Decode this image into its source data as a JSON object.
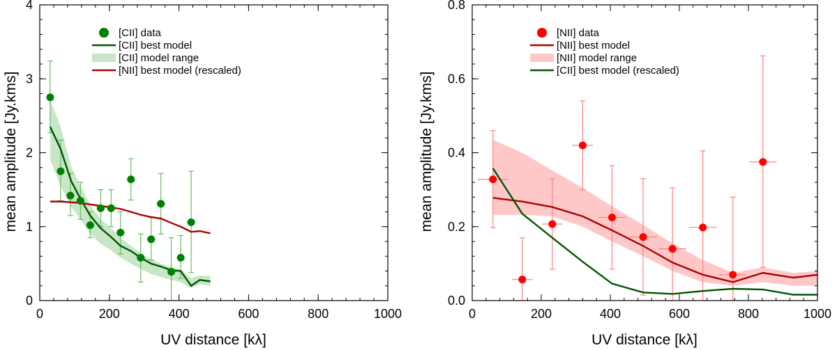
{
  "chart_data": [
    {
      "type": "scatter",
      "xlabel": "UV distance [kλ]",
      "ylabel": "mean amplitude [Jy.kms]",
      "xlim": [
        0,
        1000
      ],
      "ylim": [
        0,
        4
      ],
      "x_ticks": [
        "0",
        "200",
        "400",
        "600",
        "800",
        "1000"
      ],
      "y_ticks": [
        "0",
        "1",
        "2",
        "3",
        "4"
      ],
      "legend_position": "top-center",
      "legend": [
        {
          "label": "[CII] data",
          "kind": "dot",
          "color": "#008000"
        },
        {
          "label": "[CII] best model",
          "kind": "line",
          "color": "#005500"
        },
        {
          "label": "[CII] model range",
          "kind": "band",
          "color": "#c8e6c8"
        },
        {
          "label": "[NII] best model (rescaled)",
          "kind": "line",
          "color": "#aa0000"
        }
      ],
      "data": {
        "color": "#008000",
        "points": [
          {
            "x": 30,
            "y": 2.75,
            "ylo": 2.27,
            "yhi": 3.24,
            "xerr": 10
          },
          {
            "x": 60,
            "y": 1.75,
            "ylo": 1.35,
            "yhi": 2.17,
            "xerr": 10
          },
          {
            "x": 88,
            "y": 1.42,
            "ylo": 1.15,
            "yhi": 1.72,
            "xerr": 12
          },
          {
            "x": 117,
            "y": 1.35,
            "ylo": 1.1,
            "yhi": 1.6,
            "xerr": 12
          },
          {
            "x": 145,
            "y": 1.02,
            "ylo": 0.85,
            "yhi": 1.2,
            "xerr": 12
          },
          {
            "x": 175,
            "y": 1.25,
            "ylo": 1.0,
            "yhi": 1.5,
            "xerr": 12
          },
          {
            "x": 205,
            "y": 1.25,
            "ylo": 1.0,
            "yhi": 1.5,
            "xerr": 12
          },
          {
            "x": 232,
            "y": 0.92,
            "ylo": 0.63,
            "yhi": 1.2,
            "xerr": 12
          },
          {
            "x": 262,
            "y": 1.64,
            "ylo": 1.36,
            "yhi": 1.92,
            "xerr": 12
          },
          {
            "x": 290,
            "y": 0.58,
            "ylo": 0.25,
            "yhi": 0.9,
            "xerr": 12
          },
          {
            "x": 320,
            "y": 0.83,
            "ylo": 0.55,
            "yhi": 1.12,
            "xerr": 12
          },
          {
            "x": 348,
            "y": 1.31,
            "ylo": 0.9,
            "yhi": 1.72,
            "xerr": 12
          },
          {
            "x": 378,
            "y": 0.39,
            "ylo": 0.0,
            "yhi": 0.85,
            "xerr": 12
          },
          {
            "x": 405,
            "y": 0.58,
            "ylo": 0.3,
            "yhi": 0.88,
            "xerr": 12
          },
          {
            "x": 435,
            "y": 1.06,
            "ylo": 0.38,
            "yhi": 1.75,
            "xerr": 12
          }
        ]
      },
      "series": [
        {
          "name": "[CII] model range",
          "kind": "band",
          "color": "#c8e6c8",
          "x": [
            30,
            60,
            90,
            120,
            145,
            175,
            205,
            232,
            262,
            290,
            320,
            348,
            378,
            405,
            435,
            460,
            490
          ],
          "lower": [
            1.9,
            1.55,
            1.27,
            1.08,
            0.9,
            0.77,
            0.68,
            0.58,
            0.5,
            0.43,
            0.36,
            0.32,
            0.28,
            0.25,
            0.17,
            0.22,
            0.2
          ],
          "upper": [
            2.72,
            2.35,
            1.82,
            1.52,
            1.3,
            1.1,
            0.98,
            0.85,
            0.74,
            0.64,
            0.56,
            0.5,
            0.45,
            0.42,
            0.3,
            0.34,
            0.33
          ]
        },
        {
          "name": "[CII] best model",
          "kind": "line",
          "color": "#005500",
          "x": [
            30,
            60,
            90,
            120,
            145,
            175,
            205,
            232,
            262,
            290,
            320,
            348,
            378,
            405,
            435,
            460,
            490
          ],
          "y": [
            2.35,
            2.05,
            1.62,
            1.35,
            1.15,
            0.98,
            0.86,
            0.74,
            0.67,
            0.58,
            0.5,
            0.46,
            0.41,
            0.4,
            0.2,
            0.28,
            0.26
          ]
        },
        {
          "name": "[NII] best model (rescaled)",
          "kind": "line",
          "color": "#aa0000",
          "x": [
            30,
            60,
            90,
            120,
            145,
            175,
            205,
            232,
            262,
            290,
            320,
            348,
            378,
            405,
            435,
            460,
            490
          ],
          "y": [
            1.34,
            1.34,
            1.33,
            1.32,
            1.3,
            1.28,
            1.26,
            1.24,
            1.2,
            1.16,
            1.13,
            1.11,
            1.05,
            1.0,
            0.93,
            0.94,
            0.91
          ]
        }
      ]
    },
    {
      "type": "scatter",
      "xlabel": "UV distance [kλ]",
      "ylabel": "mean amplitude [Jy.kms]",
      "xlim": [
        0,
        1000
      ],
      "ylim": [
        0,
        0.8
      ],
      "x_ticks": [
        "0",
        "200",
        "400",
        "600",
        "800",
        "1000"
      ],
      "y_ticks": [
        "0.0",
        "0.2",
        "0.4",
        "0.6",
        "0.8"
      ],
      "legend_position": "top-center",
      "legend": [
        {
          "label": "[NII] data",
          "kind": "dot",
          "color": "#ff0000"
        },
        {
          "label": "[NII] best model",
          "kind": "line",
          "color": "#aa0000"
        },
        {
          "label": "[NII] model range",
          "kind": "band",
          "color": "#ffc8c8"
        },
        {
          "label": "[CII] best model (rescaled)",
          "kind": "line",
          "color": "#005500"
        }
      ],
      "data": {
        "color": "#ff0000",
        "points": [
          {
            "x": 60,
            "y": 0.328,
            "ylo": 0.197,
            "yhi": 0.46,
            "xerr": 45
          },
          {
            "x": 145,
            "y": 0.057,
            "ylo": 0.0,
            "yhi": 0.17,
            "xerr": 30
          },
          {
            "x": 232,
            "y": 0.207,
            "ylo": 0.085,
            "yhi": 0.33,
            "xerr": 30
          },
          {
            "x": 320,
            "y": 0.42,
            "ylo": 0.3,
            "yhi": 0.54,
            "xerr": 30
          },
          {
            "x": 405,
            "y": 0.225,
            "ylo": 0.085,
            "yhi": 0.365,
            "xerr": 40
          },
          {
            "x": 495,
            "y": 0.172,
            "ylo": 0.015,
            "yhi": 0.33,
            "xerr": 40
          },
          {
            "x": 580,
            "y": 0.14,
            "ylo": 0.0,
            "yhi": 0.305,
            "xerr": 40
          },
          {
            "x": 668,
            "y": 0.198,
            "ylo": 0.0,
            "yhi": 0.405,
            "xerr": 40
          },
          {
            "x": 755,
            "y": 0.07,
            "ylo": 0.0,
            "yhi": 0.28,
            "xerr": 40
          },
          {
            "x": 842,
            "y": 0.375,
            "ylo": 0.09,
            "yhi": 0.662,
            "xerr": 40
          }
        ]
      },
      "series": [
        {
          "name": "[NII] model range",
          "kind": "band",
          "color": "#ffc8c8",
          "x": [
            60,
            145,
            232,
            320,
            405,
            495,
            580,
            668,
            755,
            842,
            930,
            1000
          ],
          "lower": [
            0.232,
            0.232,
            0.228,
            0.2,
            0.16,
            0.12,
            0.08,
            0.05,
            0.04,
            0.05,
            0.04,
            0.04
          ],
          "upper": [
            0.435,
            0.4,
            0.352,
            0.305,
            0.255,
            0.205,
            0.155,
            0.11,
            0.075,
            0.09,
            0.075,
            0.08
          ]
        },
        {
          "name": "[NII] best model",
          "kind": "line",
          "color": "#aa0000",
          "x": [
            60,
            145,
            232,
            320,
            405,
            495,
            580,
            668,
            755,
            842,
            930,
            1000
          ],
          "y": [
            0.278,
            0.268,
            0.253,
            0.228,
            0.19,
            0.148,
            0.103,
            0.07,
            0.05,
            0.075,
            0.062,
            0.07
          ]
        },
        {
          "name": "[CII] best model (rescaled)",
          "kind": "line",
          "color": "#005500",
          "x": [
            60,
            145,
            232,
            320,
            405,
            495,
            580,
            668,
            755,
            842,
            930,
            1000
          ],
          "y": [
            0.358,
            0.235,
            0.17,
            0.105,
            0.046,
            0.022,
            0.018,
            0.026,
            0.032,
            0.03,
            0.016,
            0.016
          ]
        }
      ]
    }
  ]
}
